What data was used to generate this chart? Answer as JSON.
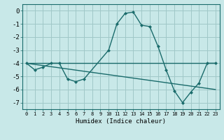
{
  "xlabel": "Humidex (Indice chaleur)",
  "bg_color": "#c8e8e8",
  "grid_color": "#a0c8c8",
  "line_color": "#1a6b6b",
  "line1_x": [
    0,
    1,
    2,
    3,
    4,
    5,
    6,
    7,
    10,
    11,
    12,
    13,
    14,
    15,
    16,
    17,
    18,
    19,
    20,
    21,
    22,
    23
  ],
  "line1_y": [
    -4.0,
    -4.5,
    -4.3,
    -4.0,
    -4.0,
    -5.2,
    -5.4,
    -5.2,
    -3.0,
    -1.0,
    -0.2,
    -0.1,
    -1.1,
    -1.2,
    -2.7,
    -4.5,
    -6.1,
    -7.0,
    -6.2,
    -5.5,
    -4.0,
    -4.0
  ],
  "line2_x": [
    0,
    23
  ],
  "line2_y": [
    -4.0,
    -4.0
  ],
  "line3_x": [
    0,
    23
  ],
  "line3_y": [
    -4.0,
    -6.0
  ],
  "ylim": [
    -7.5,
    0.5
  ],
  "xlim": [
    -0.5,
    23.5
  ],
  "yticks": [
    0,
    -1,
    -2,
    -3,
    -4,
    -5,
    -6,
    -7
  ],
  "xticks": [
    0,
    1,
    2,
    3,
    4,
    5,
    6,
    7,
    8,
    9,
    10,
    11,
    12,
    13,
    14,
    15,
    16,
    17,
    18,
    19,
    20,
    21,
    22,
    23
  ],
  "xlabel_fontsize": 6.5,
  "ytick_fontsize": 6.5,
  "xtick_fontsize": 5.0
}
